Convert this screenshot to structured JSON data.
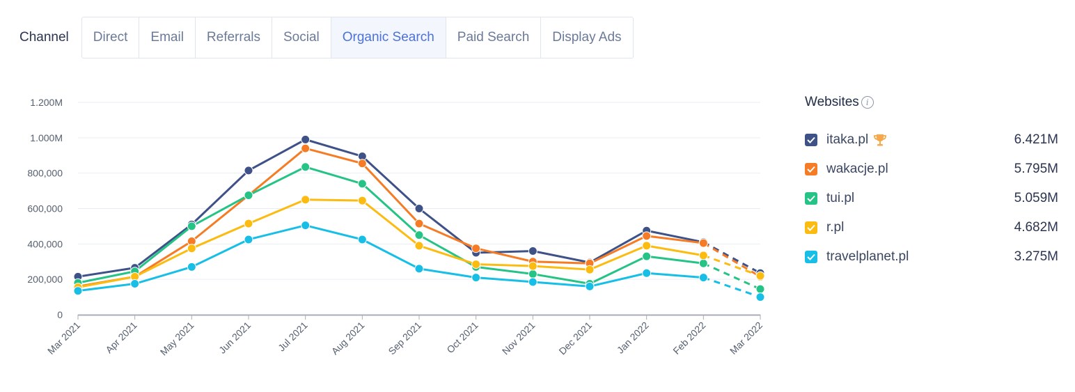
{
  "channel": {
    "label": "Channel",
    "tabs": [
      "Direct",
      "Email",
      "Referrals",
      "Social",
      "Organic Search",
      "Paid Search",
      "Display Ads"
    ],
    "active_tab": "Organic Search"
  },
  "legend": {
    "title": "Websites",
    "items": [
      {
        "name": "itaka.pl",
        "value": "6.421M",
        "color": "#3e5288",
        "trophy": true
      },
      {
        "name": "wakacje.pl",
        "value": "5.795M",
        "color": "#f57c25",
        "trophy": false
      },
      {
        "name": "tui.pl",
        "value": "5.059M",
        "color": "#25c386",
        "trophy": false
      },
      {
        "name": "r.pl",
        "value": "4.682M",
        "color": "#fbbb10",
        "trophy": false
      },
      {
        "name": "travelplanet.pl",
        "value": "3.275M",
        "color": "#17bee6",
        "trophy": false
      }
    ]
  },
  "chart_data": {
    "type": "line",
    "categories": [
      "Mar 2021",
      "Apr 2021",
      "May 2021",
      "Jun 2021",
      "Jul 2021",
      "Aug 2021",
      "Sep 2021",
      "Oct 2021",
      "Nov 2021",
      "Dec 2021",
      "Jan 2022",
      "Feb 2022",
      "Mar 2022"
    ],
    "y_ticks": [
      0,
      200000,
      400000,
      600000,
      800000,
      1000000,
      1200000
    ],
    "y_tick_labels": [
      "0",
      "200,000",
      "400,000",
      "600,000",
      "800,000",
      "1.000M",
      "1.200M"
    ],
    "ylim": [
      0,
      1200000
    ],
    "grid": true,
    "dashed_last_segment": true,
    "series": [
      {
        "name": "itaka.pl",
        "color": "#3e5288",
        "values": [
          215000,
          265000,
          510000,
          815000,
          990000,
          895000,
          600000,
          350000,
          360000,
          295000,
          475000,
          410000,
          235000
        ]
      },
      {
        "name": "wakacje.pl",
        "color": "#f57c25",
        "values": [
          160000,
          215000,
          415000,
          675000,
          940000,
          855000,
          515000,
          375000,
          300000,
          290000,
          445000,
          405000,
          215000
        ]
      },
      {
        "name": "tui.pl",
        "color": "#25c386",
        "values": [
          180000,
          245000,
          500000,
          675000,
          835000,
          740000,
          450000,
          270000,
          230000,
          175000,
          330000,
          290000,
          145000
        ]
      },
      {
        "name": "r.pl",
        "color": "#fbbb10",
        "values": [
          155000,
          215000,
          375000,
          515000,
          650000,
          645000,
          390000,
          285000,
          275000,
          255000,
          390000,
          335000,
          220000
        ]
      },
      {
        "name": "travelplanet.pl",
        "color": "#17bee6",
        "values": [
          135000,
          175000,
          270000,
          425000,
          505000,
          425000,
          260000,
          210000,
          185000,
          160000,
          235000,
          210000,
          100000
        ]
      }
    ]
  }
}
